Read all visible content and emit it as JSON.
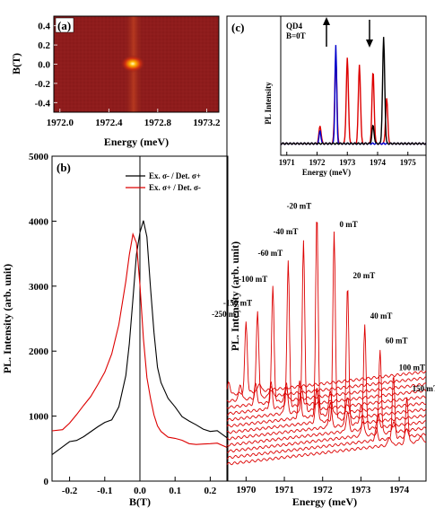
{
  "chart_data": [
    {
      "panel": "(a)",
      "type": "heatmap",
      "xlabel": "Energy (meV)",
      "ylabel": "B(T)",
      "xlim": [
        1971.95,
        1973.3
      ],
      "ylim": [
        -0.5,
        0.5
      ],
      "xticks": [
        "1972.0",
        "1972.4",
        "1972.8",
        "1973.2"
      ],
      "yticks": [
        "0.4",
        "0.2",
        "0.0",
        "-0.2",
        "-0.4"
      ],
      "peak": {
        "energy": 1972.68,
        "B": 0.0
      },
      "colors": {
        "background": "#8a1a1a",
        "peak": "#ffff80"
      }
    },
    {
      "panel": "(b)",
      "type": "line",
      "xlabel": "B(T)",
      "ylabel": "PL. Intensity (arb. unit)",
      "xlim": [
        -0.25,
        0.25
      ],
      "ylim": [
        0,
        5000
      ],
      "xticks": [
        "-0.2",
        "-0.1",
        "0.0",
        "0.1",
        "0.2"
      ],
      "yticks": [
        "0",
        "1000",
        "2000",
        "3000",
        "4000",
        "5000"
      ],
      "legend_position": "top-right",
      "series": [
        {
          "name": "Ex. σ- / Det. σ+",
          "color": "#000000",
          "x": [
            -0.25,
            -0.22,
            -0.2,
            -0.18,
            -0.16,
            -0.14,
            -0.12,
            -0.1,
            -0.08,
            -0.06,
            -0.04,
            -0.03,
            -0.02,
            -0.01,
            0.0,
            0.01,
            0.02,
            0.03,
            0.04,
            0.05,
            0.06,
            0.08,
            0.1,
            0.12,
            0.14,
            0.16,
            0.18,
            0.2,
            0.22,
            0.25
          ],
          "y": [
            430,
            520,
            600,
            650,
            700,
            760,
            820,
            880,
            950,
            1150,
            1600,
            2100,
            2800,
            3500,
            3850,
            4000,
            3750,
            3000,
            2300,
            1750,
            1500,
            1250,
            1150,
            1000,
            900,
            850,
            800,
            780,
            800,
            650
          ]
        },
        {
          "name": "Ex. σ+ / Det. σ-",
          "color": "#dd0000",
          "x": [
            -0.25,
            -0.22,
            -0.2,
            -0.18,
            -0.16,
            -0.14,
            -0.12,
            -0.1,
            -0.08,
            -0.06,
            -0.04,
            -0.03,
            -0.02,
            -0.01,
            0.0,
            0.01,
            0.02,
            0.03,
            0.04,
            0.05,
            0.06,
            0.08,
            0.1,
            0.12,
            0.14,
            0.16,
            0.18,
            0.2,
            0.22,
            0.25
          ],
          "y": [
            750,
            800,
            900,
            1000,
            1150,
            1300,
            1500,
            1700,
            1950,
            2400,
            3100,
            3500,
            3800,
            3650,
            3000,
            2200,
            1600,
            1250,
            1000,
            850,
            780,
            700,
            650,
            620,
            600,
            580,
            570,
            560,
            560,
            520
          ]
        }
      ]
    },
    {
      "panel": "(c)",
      "type": "line",
      "xlabel": "Energy (meV)",
      "ylabel": "PL. Intensity (arb. unit)",
      "xlim": [
        1969.5,
        1974.7
      ],
      "xticks": [
        "1970",
        "1971",
        "1972",
        "1973",
        "1974"
      ],
      "series_labels": [
        "-250 mT",
        "-150 mT",
        "-100 mT",
        "-60 mT",
        "-40 mT",
        "-20 mT",
        "0 mT",
        "20 mT",
        "40 mT",
        "60 mT",
        "100 mT",
        "150 mT"
      ],
      "peak_energy": [
        1970.0,
        1970.3,
        1970.7,
        1971.1,
        1971.5,
        1971.85,
        1972.3,
        1972.65,
        1973.1,
        1973.5,
        1973.85,
        1974.2
      ],
      "peak_height": [
        0.35,
        0.43,
        0.57,
        0.72,
        0.85,
        1.0,
        0.93,
        0.7,
        0.52,
        0.42,
        0.31,
        0.23
      ],
      "inset": {
        "annotation": "QD4\nB=0T",
        "ylabel": "PL Intensity",
        "xlabel": "Energy (meV)",
        "xlim": [
          1970.8,
          1975.6
        ],
        "xticks": [
          "1971",
          "1972",
          "1973",
          "1974",
          "1975"
        ],
        "series_colors": [
          "#dd0000",
          "#0000cc",
          "#000000"
        ],
        "blue_peak": 1972.62,
        "black_peak": 1974.2,
        "red_peaks": [
          1972.1,
          1972.62,
          1973.0,
          1973.4,
          1973.85,
          1974.3
        ]
      }
    }
  ]
}
